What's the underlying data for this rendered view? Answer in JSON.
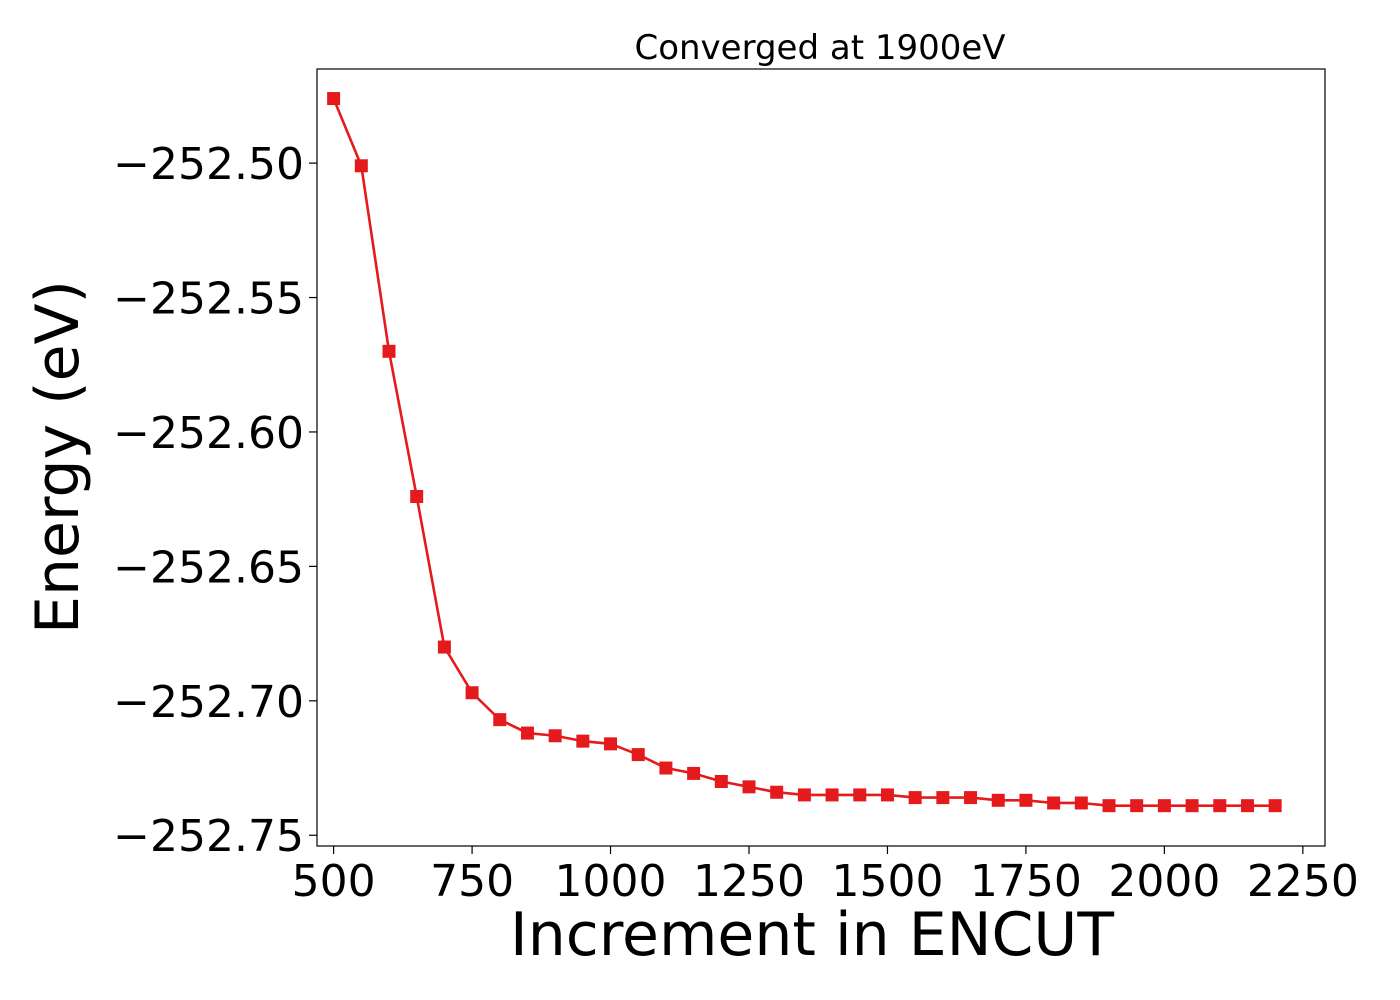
{
  "chart_data": {
    "type": "line",
    "title": "Converged at 1900eV",
    "xlabel": "Increment in ENCUT",
    "ylabel": "Energy (eV)",
    "xlim": [
      470,
      2290
    ],
    "ylim": [
      -252.754,
      -252.465
    ],
    "xticks": [
      500,
      750,
      1000,
      1250,
      1500,
      1750,
      2000,
      2250
    ],
    "xtick_labels": [
      "500",
      "750",
      "1000",
      "1250",
      "1500",
      "1750",
      "2000",
      "2250"
    ],
    "yticks": [
      -252.5,
      -252.55,
      -252.6,
      -252.65,
      -252.7,
      -252.75
    ],
    "ytick_labels": [
      "−252.50",
      "−252.55",
      "−252.60",
      "−252.65",
      "−252.70",
      "−252.75"
    ],
    "grid": false,
    "legend": "none",
    "series": [
      {
        "color": "#e41a1c",
        "marker": "square",
        "x": [
          500,
          550,
          600,
          650,
          700,
          750,
          800,
          850,
          900,
          950,
          1000,
          1050,
          1100,
          1150,
          1200,
          1250,
          1300,
          1350,
          1400,
          1450,
          1500,
          1550,
          1600,
          1650,
          1700,
          1750,
          1800,
          1850,
          1900,
          1950,
          2000,
          2050,
          2100,
          2150,
          2200
        ],
        "y": [
          -252.476,
          -252.501,
          -252.57,
          -252.624,
          -252.68,
          -252.697,
          -252.707,
          -252.712,
          -252.713,
          -252.715,
          -252.716,
          -252.72,
          -252.725,
          -252.727,
          -252.73,
          -252.732,
          -252.734,
          -252.735,
          -252.735,
          -252.735,
          -252.735,
          -252.736,
          -252.736,
          -252.736,
          -252.737,
          -252.737,
          -252.738,
          -252.738,
          -252.739,
          -252.739,
          -252.739,
          -252.739,
          -252.739,
          -252.739,
          -252.739
        ]
      }
    ]
  }
}
